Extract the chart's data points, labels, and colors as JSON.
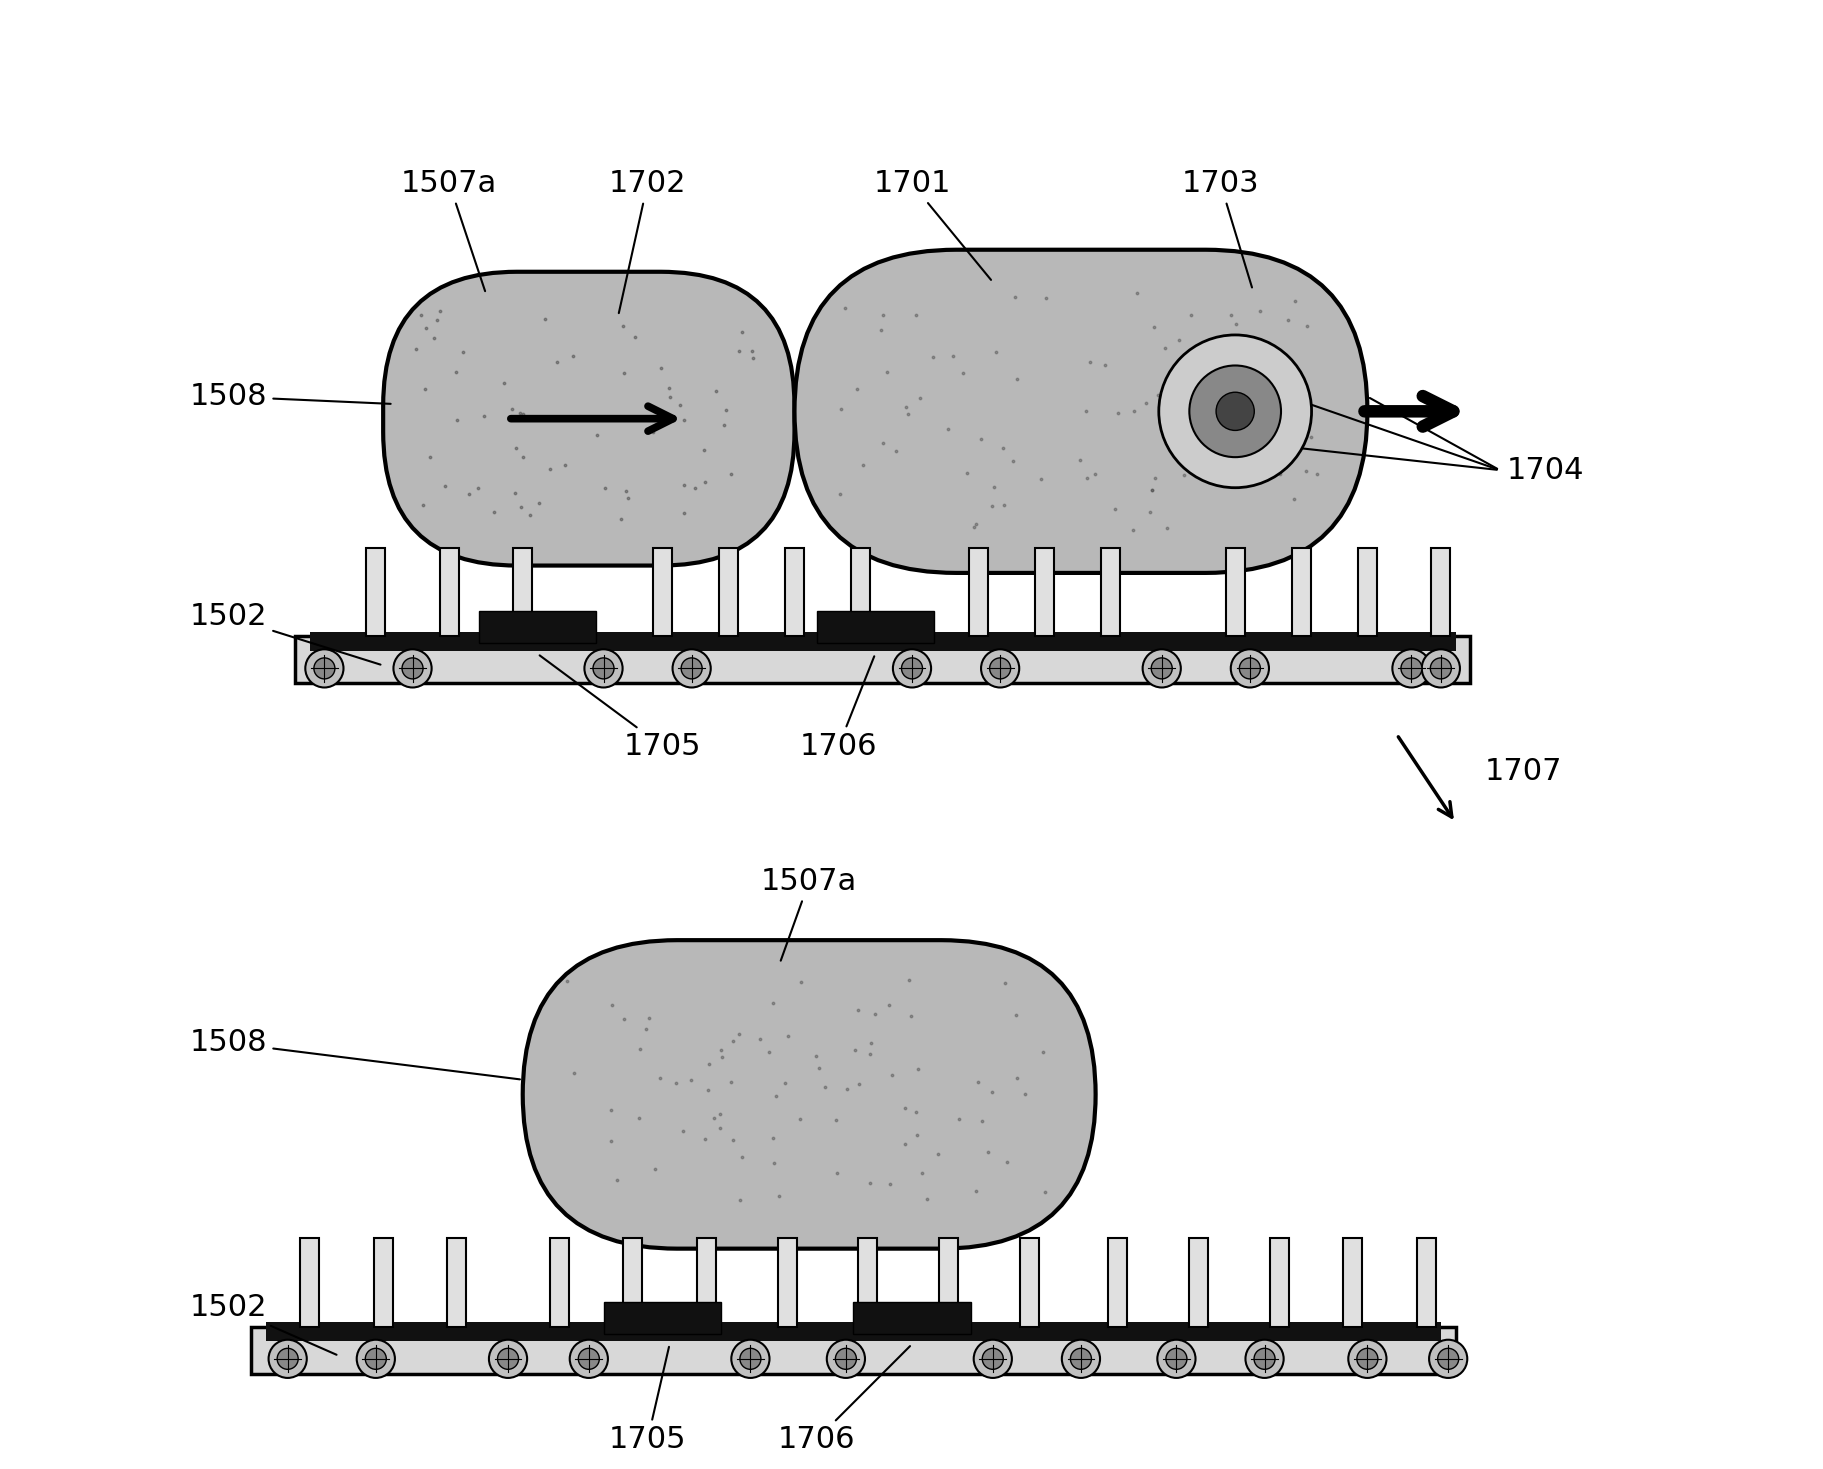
{
  "bg_color": "#ffffff",
  "line_color": "#000000",
  "font_size": 22,
  "lw_main": 2.5,
  "lw_thick": 3.0,
  "lw_ann": 1.5
}
